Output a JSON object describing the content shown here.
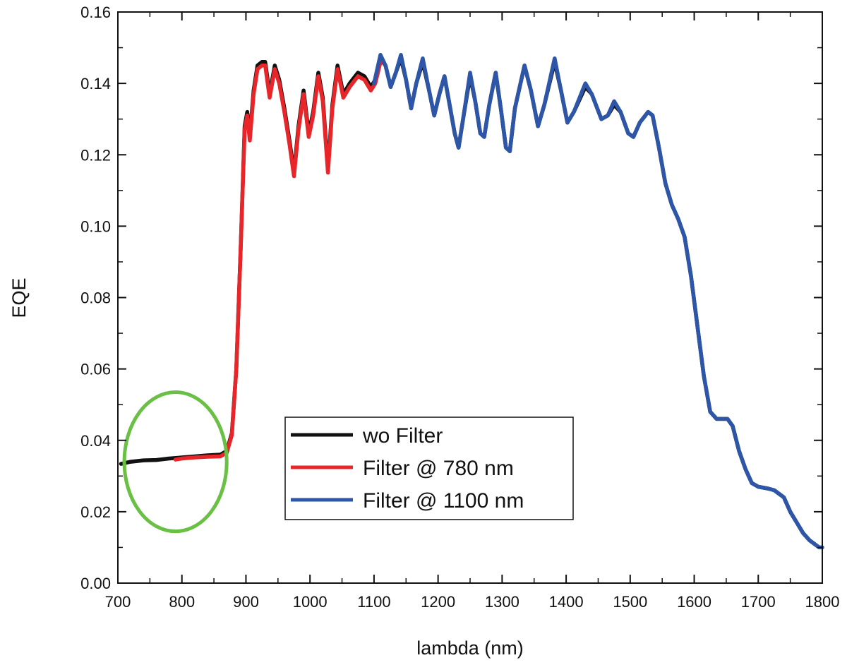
{
  "chart_data": {
    "type": "line",
    "title": "",
    "xlabel": "lambda (nm)",
    "ylabel": "EQE",
    "xlim": [
      700,
      1800
    ],
    "ylim": [
      0.0,
      0.16
    ],
    "x_ticks": [
      700,
      800,
      900,
      1000,
      1100,
      1200,
      1300,
      1400,
      1500,
      1600,
      1700,
      1800
    ],
    "x_tick_labels": [
      "700",
      "800",
      "900",
      "1000",
      "1100",
      "1200",
      "1300",
      "1400",
      "1500",
      "1600",
      "1700",
      "1800"
    ],
    "y_ticks": [
      0.0,
      0.02,
      0.04,
      0.06,
      0.08,
      0.1,
      0.12,
      0.14,
      0.16
    ],
    "y_tick_labels": [
      "0.00",
      "0.02",
      "0.04",
      "0.06",
      "0.08",
      "0.10",
      "0.12",
      "0.14",
      "0.16"
    ],
    "grid": false,
    "legend_position": "lower-center",
    "series": [
      {
        "name": "wo Filter",
        "color": "#111111",
        "points": [
          [
            705,
            0.0334
          ],
          [
            720,
            0.034
          ],
          [
            740,
            0.0344
          ],
          [
            760,
            0.0345
          ],
          [
            780,
            0.0349
          ],
          [
            800,
            0.0352
          ],
          [
            820,
            0.0355
          ],
          [
            840,
            0.0358
          ],
          [
            860,
            0.036
          ],
          [
            870,
            0.037
          ],
          [
            878,
            0.042
          ],
          [
            885,
            0.06
          ],
          [
            892,
            0.095
          ],
          [
            898,
            0.128
          ],
          [
            902,
            0.132
          ],
          [
            906,
            0.125
          ],
          [
            912,
            0.138
          ],
          [
            918,
            0.145
          ],
          [
            925,
            0.146
          ],
          [
            930,
            0.146
          ],
          [
            937,
            0.137
          ],
          [
            945,
            0.145
          ],
          [
            952,
            0.141
          ],
          [
            960,
            0.133
          ],
          [
            968,
            0.124
          ],
          [
            975,
            0.115
          ],
          [
            982,
            0.128
          ],
          [
            990,
            0.138
          ],
          [
            998,
            0.126
          ],
          [
            1005,
            0.132
          ],
          [
            1013,
            0.143
          ],
          [
            1020,
            0.136
          ],
          [
            1028,
            0.116
          ],
          [
            1035,
            0.134
          ],
          [
            1043,
            0.145
          ],
          [
            1052,
            0.137
          ],
          [
            1062,
            0.14
          ],
          [
            1075,
            0.143
          ],
          [
            1085,
            0.142
          ],
          [
            1095,
            0.139
          ],
          [
            1102,
            0.141
          ],
          [
            1110,
            0.147
          ],
          [
            1118,
            0.145
          ],
          [
            1126,
            0.139
          ],
          [
            1134,
            0.143
          ],
          [
            1142,
            0.147
          ],
          [
            1150,
            0.141
          ],
          [
            1158,
            0.133
          ],
          [
            1166,
            0.14
          ],
          [
            1176,
            0.146
          ],
          [
            1186,
            0.138
          ],
          [
            1194,
            0.131
          ],
          [
            1202,
            0.137
          ],
          [
            1210,
            0.142
          ],
          [
            1218,
            0.134
          ],
          [
            1226,
            0.126
          ],
          [
            1232,
            0.122
          ],
          [
            1240,
            0.131
          ],
          [
            1250,
            0.142
          ],
          [
            1258,
            0.135
          ],
          [
            1266,
            0.126
          ],
          [
            1272,
            0.125
          ],
          [
            1280,
            0.134
          ],
          [
            1290,
            0.143
          ],
          [
            1298,
            0.133
          ],
          [
            1306,
            0.122
          ],
          [
            1312,
            0.121
          ],
          [
            1320,
            0.133
          ],
          [
            1335,
            0.145
          ],
          [
            1345,
            0.138
          ],
          [
            1356,
            0.128
          ],
          [
            1366,
            0.134
          ],
          [
            1382,
            0.146
          ],
          [
            1392,
            0.138
          ],
          [
            1402,
            0.129
          ],
          [
            1412,
            0.132
          ],
          [
            1430,
            0.139
          ],
          [
            1440,
            0.137
          ],
          [
            1455,
            0.13
          ],
          [
            1465,
            0.131
          ],
          [
            1475,
            0.134
          ],
          [
            1485,
            0.132
          ],
          [
            1497,
            0.126
          ],
          [
            1505,
            0.125
          ],
          [
            1515,
            0.129
          ],
          [
            1528,
            0.132
          ],
          [
            1535,
            0.131
          ],
          [
            1545,
            0.122
          ],
          [
            1555,
            0.112
          ],
          [
            1565,
            0.106
          ],
          [
            1575,
            0.102
          ],
          [
            1585,
            0.097
          ],
          [
            1595,
            0.086
          ],
          [
            1605,
            0.072
          ],
          [
            1615,
            0.058
          ],
          [
            1625,
            0.048
          ],
          [
            1635,
            0.046
          ],
          [
            1652,
            0.046
          ],
          [
            1660,
            0.044
          ],
          [
            1670,
            0.037
          ],
          [
            1680,
            0.032
          ],
          [
            1690,
            0.028
          ],
          [
            1700,
            0.027
          ],
          [
            1715,
            0.0265
          ],
          [
            1725,
            0.026
          ],
          [
            1740,
            0.024
          ],
          [
            1750,
            0.02
          ],
          [
            1760,
            0.017
          ],
          [
            1770,
            0.014
          ],
          [
            1780,
            0.012
          ],
          [
            1795,
            0.01
          ]
        ]
      },
      {
        "name": "Filter @ 780 nm",
        "color": "#e8262a",
        "points": [
          [
            790,
            0.0346
          ],
          [
            800,
            0.0349
          ],
          [
            820,
            0.0352
          ],
          [
            840,
            0.0354
          ],
          [
            860,
            0.0355
          ],
          [
            870,
            0.0365
          ],
          [
            878,
            0.0415
          ],
          [
            885,
            0.06
          ],
          [
            892,
            0.095
          ],
          [
            898,
            0.127
          ],
          [
            902,
            0.131
          ],
          [
            906,
            0.124
          ],
          [
            912,
            0.137
          ],
          [
            918,
            0.144
          ],
          [
            925,
            0.145
          ],
          [
            930,
            0.145
          ],
          [
            937,
            0.136
          ],
          [
            945,
            0.144
          ],
          [
            952,
            0.14
          ],
          [
            960,
            0.132
          ],
          [
            968,
            0.123
          ],
          [
            975,
            0.114
          ],
          [
            982,
            0.127
          ],
          [
            990,
            0.137
          ],
          [
            998,
            0.125
          ],
          [
            1005,
            0.131
          ],
          [
            1013,
            0.142
          ],
          [
            1020,
            0.135
          ],
          [
            1028,
            0.115
          ],
          [
            1035,
            0.133
          ],
          [
            1043,
            0.144
          ],
          [
            1052,
            0.136
          ],
          [
            1062,
            0.139
          ],
          [
            1075,
            0.142
          ],
          [
            1085,
            0.141
          ],
          [
            1095,
            0.138
          ],
          [
            1102,
            0.14
          ],
          [
            1110,
            0.146
          ]
        ]
      },
      {
        "name": "Filter @ 1100 nm",
        "color": "#2e56a8",
        "points": [
          [
            1100,
            0.14
          ],
          [
            1110,
            0.148
          ],
          [
            1118,
            0.145
          ],
          [
            1126,
            0.139
          ],
          [
            1134,
            0.143
          ],
          [
            1142,
            0.148
          ],
          [
            1150,
            0.141
          ],
          [
            1158,
            0.133
          ],
          [
            1166,
            0.14
          ],
          [
            1176,
            0.147
          ],
          [
            1186,
            0.138
          ],
          [
            1194,
            0.131
          ],
          [
            1202,
            0.137
          ],
          [
            1210,
            0.142
          ],
          [
            1218,
            0.134
          ],
          [
            1226,
            0.126
          ],
          [
            1232,
            0.122
          ],
          [
            1240,
            0.131
          ],
          [
            1250,
            0.143
          ],
          [
            1258,
            0.135
          ],
          [
            1266,
            0.126
          ],
          [
            1272,
            0.125
          ],
          [
            1280,
            0.134
          ],
          [
            1290,
            0.143
          ],
          [
            1298,
            0.133
          ],
          [
            1306,
            0.122
          ],
          [
            1312,
            0.121
          ],
          [
            1320,
            0.133
          ],
          [
            1335,
            0.145
          ],
          [
            1345,
            0.138
          ],
          [
            1356,
            0.128
          ],
          [
            1366,
            0.134
          ],
          [
            1382,
            0.147
          ],
          [
            1392,
            0.138
          ],
          [
            1402,
            0.129
          ],
          [
            1412,
            0.132
          ],
          [
            1430,
            0.14
          ],
          [
            1440,
            0.137
          ],
          [
            1455,
            0.13
          ],
          [
            1465,
            0.131
          ],
          [
            1475,
            0.135
          ],
          [
            1485,
            0.132
          ],
          [
            1497,
            0.126
          ],
          [
            1505,
            0.125
          ],
          [
            1515,
            0.129
          ],
          [
            1528,
            0.132
          ],
          [
            1535,
            0.131
          ],
          [
            1545,
            0.122
          ],
          [
            1555,
            0.112
          ],
          [
            1565,
            0.106
          ],
          [
            1575,
            0.102
          ],
          [
            1585,
            0.097
          ],
          [
            1595,
            0.086
          ],
          [
            1605,
            0.072
          ],
          [
            1615,
            0.058
          ],
          [
            1625,
            0.048
          ],
          [
            1635,
            0.046
          ],
          [
            1652,
            0.046
          ],
          [
            1660,
            0.044
          ],
          [
            1670,
            0.037
          ],
          [
            1680,
            0.032
          ],
          [
            1690,
            0.028
          ],
          [
            1700,
            0.027
          ],
          [
            1715,
            0.0265
          ],
          [
            1725,
            0.026
          ],
          [
            1740,
            0.024
          ],
          [
            1750,
            0.02
          ],
          [
            1760,
            0.017
          ],
          [
            1770,
            0.014
          ],
          [
            1780,
            0.012
          ],
          [
            1795,
            0.01
          ],
          [
            1800,
            0.01
          ]
        ]
      }
    ],
    "annotations": [
      {
        "shape": "ellipse",
        "color": "#6abf45",
        "center": [
          790,
          0.034
        ],
        "x_radius": 80,
        "y_radius": 0.0195
      }
    ]
  }
}
